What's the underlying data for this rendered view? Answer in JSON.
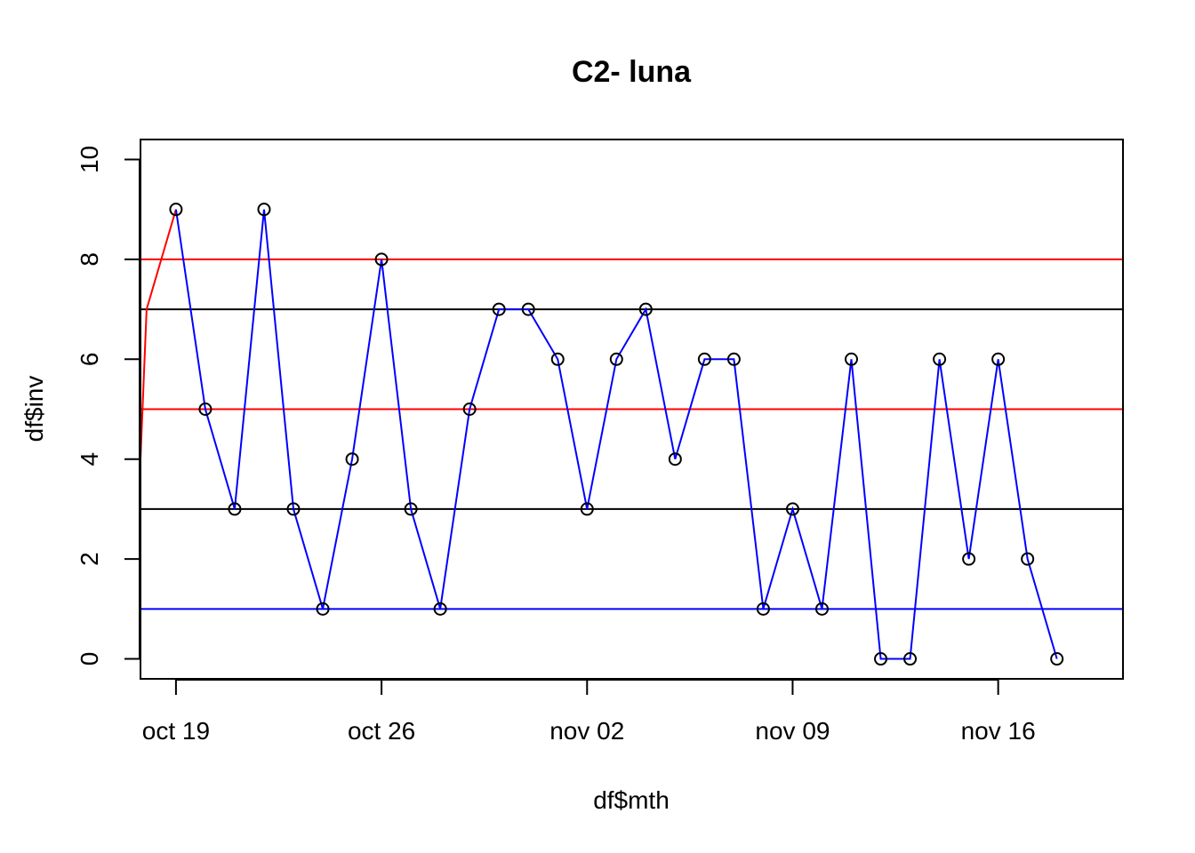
{
  "chart_data": {
    "type": "line",
    "title": "C2- luna",
    "xlabel": "df$mth",
    "ylabel": "df$inv",
    "ylim": [
      0,
      10
    ],
    "yticks": [
      0,
      2,
      4,
      6,
      8,
      10
    ],
    "xticks": [
      {
        "date": "2019-10-19",
        "label": "oct 19"
      },
      {
        "date": "2019-10-26",
        "label": "oct 26"
      },
      {
        "date": "2019-11-02",
        "label": "nov 02"
      },
      {
        "date": "2019-11-09",
        "label": "nov 09"
      },
      {
        "date": "2019-11-16",
        "label": "nov 16"
      }
    ],
    "xlim": [
      "2019-10-17 19:00",
      "2019-11-20 06:00"
    ],
    "grid": false,
    "series": [
      {
        "color": "#ff0000",
        "points": [
          {
            "x": "2019-10-17 19:00",
            "y": 4
          },
          {
            "x": "2019-10-18 00:00",
            "y": 7
          },
          {
            "x": "2019-10-19 00:00",
            "y": 9
          }
        ]
      },
      {
        "color": "#0000ff",
        "markers": true,
        "points": [
          {
            "x": "2019-10-19",
            "y": 9
          },
          {
            "x": "2019-10-20",
            "y": 5
          },
          {
            "x": "2019-10-21",
            "y": 3
          },
          {
            "x": "2019-10-22",
            "y": 9
          },
          {
            "x": "2019-10-23",
            "y": 3
          },
          {
            "x": "2019-10-24",
            "y": 1
          },
          {
            "x": "2019-10-25",
            "y": 4
          },
          {
            "x": "2019-10-26",
            "y": 8
          },
          {
            "x": "2019-10-27",
            "y": 3
          },
          {
            "x": "2019-10-28",
            "y": 1
          },
          {
            "x": "2019-10-29",
            "y": 5
          },
          {
            "x": "2019-10-30",
            "y": 7
          },
          {
            "x": "2019-10-31",
            "y": 7
          },
          {
            "x": "2019-11-01",
            "y": 6
          },
          {
            "x": "2019-11-02",
            "y": 3
          },
          {
            "x": "2019-11-03",
            "y": 6
          },
          {
            "x": "2019-11-04",
            "y": 7
          },
          {
            "x": "2019-11-05",
            "y": 4
          },
          {
            "x": "2019-11-06",
            "y": 6
          },
          {
            "x": "2019-11-07",
            "y": 6
          },
          {
            "x": "2019-11-08",
            "y": 1
          },
          {
            "x": "2019-11-09",
            "y": 3
          },
          {
            "x": "2019-11-10",
            "y": 1
          },
          {
            "x": "2019-11-11",
            "y": 6
          },
          {
            "x": "2019-11-12",
            "y": 0
          },
          {
            "x": "2019-11-13",
            "y": 0
          },
          {
            "x": "2019-11-14",
            "y": 6
          },
          {
            "x": "2019-11-15",
            "y": 2
          },
          {
            "x": "2019-11-16",
            "y": 6
          },
          {
            "x": "2019-11-17",
            "y": 2
          },
          {
            "x": "2019-11-18",
            "y": 0
          }
        ]
      }
    ],
    "hlines": [
      {
        "y": 8,
        "color": "#ff0000"
      },
      {
        "y": 7,
        "color": "#000000"
      },
      {
        "y": 5,
        "color": "#ff0000"
      },
      {
        "y": 3,
        "color": "#000000"
      },
      {
        "y": 1,
        "color": "#0000ff"
      }
    ]
  }
}
